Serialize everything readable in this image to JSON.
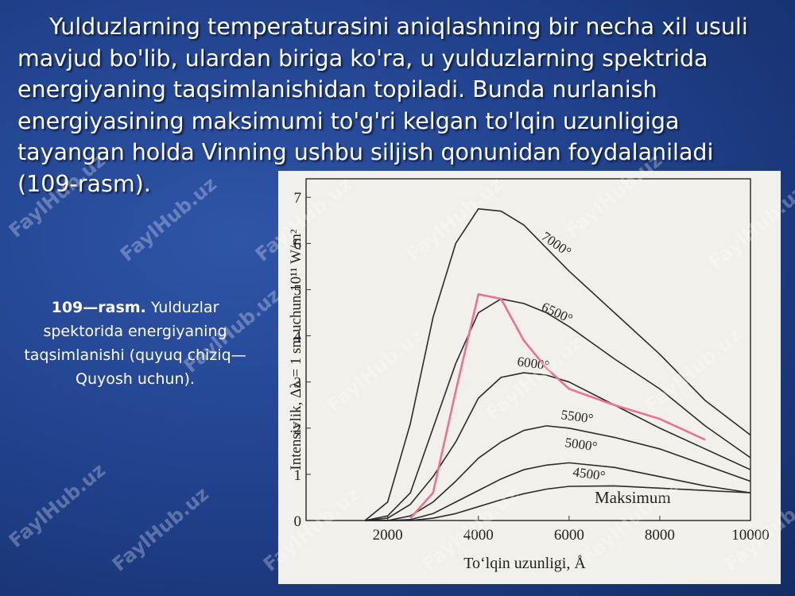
{
  "slide": {
    "paragraph": "Yulduzlarning temperaturasini aniqlashning bir necha xil usuli mavjud bo'lib, ulardan biriga ko'ra, u yulduzlarning spektrida energiyaning taqsimlanishidan topiladi. Bunda nurlanish energiyasining maksimumi to'g'ri kelgan to'lqin uzunligiga tayangan holda Vinning ushbu siljish qonunidan foydalaniladi (109-rasm).",
    "caption_bold": "109—rasm.",
    "caption": "Yulduzlar spektorida energiyaning taqsimlanishi (quyuq chiziq—Quyosh uchun).",
    "watermark": "FaylHub.uz"
  },
  "chart_data": {
    "type": "line",
    "x_label": "To‘lqin uzunligi, Å",
    "y_label": "Intensivlik, Δλ = 1 sm uchun 10¹¹ W/m²",
    "annotation": "Maksimum",
    "x": [
      1500,
      2000,
      2500,
      3000,
      3500,
      4000,
      4500,
      5000,
      5500,
      6000,
      7000,
      8000,
      9000,
      10000
    ],
    "series": [
      {
        "name": "7000°",
        "color": "#2b2b2b",
        "values": [
          0,
          0.4,
          2.1,
          4.4,
          6.0,
          6.75,
          6.7,
          6.4,
          5.9,
          5.4,
          4.5,
          3.6,
          2.6,
          1.85
        ]
      },
      {
        "name": "6500°",
        "color": "#2b2b2b",
        "values": [
          0,
          0.1,
          0.6,
          2.0,
          3.4,
          4.5,
          4.8,
          4.7,
          4.5,
          4.2,
          3.5,
          2.85,
          2.05,
          1.36
        ]
      },
      {
        "name": "6000°",
        "color": "#2b2b2b",
        "values": [
          0,
          0.05,
          0.35,
          0.95,
          1.7,
          2.65,
          3.1,
          3.2,
          3.15,
          3.0,
          2.5,
          2.0,
          1.55,
          1.1
        ]
      },
      {
        "name": "5500°",
        "color": "#2b2b2b",
        "values": [
          0,
          0,
          0.1,
          0.4,
          0.85,
          1.35,
          1.7,
          1.95,
          2.05,
          2.0,
          1.8,
          1.55,
          1.2,
          0.85
        ]
      },
      {
        "name": "5000°",
        "color": "#2b2b2b",
        "values": [
          0,
          0,
          0.02,
          0.15,
          0.4,
          0.65,
          0.9,
          1.1,
          1.2,
          1.25,
          1.15,
          0.95,
          0.75,
          0.6
        ]
      },
      {
        "name": "4500°",
        "color": "#2b2b2b",
        "values": [
          0,
          0,
          0,
          0.05,
          0.15,
          0.3,
          0.45,
          0.58,
          0.68,
          0.74,
          0.75,
          0.7,
          0.65,
          0.6
        ]
      },
      {
        "color": "#e8748f",
        "values": [
          null,
          null,
          0.05,
          0.6,
          2.8,
          4.9,
          4.8,
          3.9,
          3.3,
          2.85,
          2.5,
          2.2,
          1.75,
          null
        ]
      }
    ],
    "xlim": [
      200,
      10000
    ],
    "ylim": [
      0,
      7.4
    ],
    "xticks": [
      2000,
      4000,
      6000,
      8000,
      10000
    ],
    "yticks": [
      0,
      1,
      2,
      3,
      4,
      5,
      6,
      7
    ]
  }
}
